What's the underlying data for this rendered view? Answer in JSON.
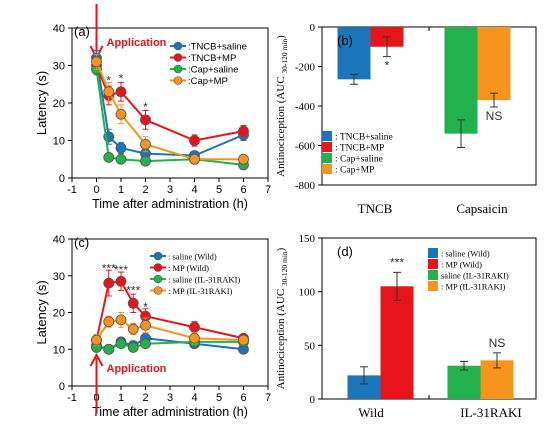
{
  "chart_data": [
    {
      "panel_label": "(a)",
      "type": "line",
      "xlabel": "Time after administration (h)",
      "ylabel": "Latency (s)",
      "xlim": [
        -1,
        7
      ],
      "ylim": [
        0,
        40
      ],
      "x_ticks": [
        -1,
        0,
        1,
        2,
        3,
        4,
        5,
        6,
        7
      ],
      "y_ticks": [
        0,
        10,
        20,
        30,
        40
      ],
      "x": [
        0,
        0.5,
        1,
        2,
        4,
        6
      ],
      "annotation": "Application",
      "annotation_color": "#e8141b",
      "legend_position": "top-right",
      "series": [
        {
          "name": ":TNCB+saline",
          "color": "#1b75bb",
          "values": [
            32,
            11,
            8,
            6.5,
            6,
            11.5
          ],
          "errors": [
            2,
            2,
            1.5,
            1,
            1,
            1.5
          ]
        },
        {
          "name": ":TNCB+MP",
          "color": "#e8141b",
          "values": [
            30,
            22,
            23,
            15.5,
            10,
            12.5
          ],
          "errors": [
            2,
            2.5,
            2.5,
            2.5,
            1.5,
            1.5
          ]
        },
        {
          "name": ":Cap+saline",
          "color": "#22b14c",
          "values": [
            29,
            5.5,
            5,
            4.5,
            5,
            3.5
          ],
          "errors": [
            1.5,
            1,
            1,
            1,
            1,
            1
          ]
        },
        {
          "name": ":Cap+MP",
          "color": "#f7941d",
          "values": [
            31,
            23,
            17,
            9,
            5,
            5
          ],
          "errors": [
            2,
            2.5,
            2.5,
            2,
            1,
            1
          ]
        }
      ],
      "significance": [
        {
          "x": 0.5,
          "y": 26,
          "text": "*"
        },
        {
          "x": 1,
          "y": 26.5,
          "text": "*"
        },
        {
          "x": 2,
          "y": 19,
          "text": "*"
        }
      ]
    },
    {
      "panel_label": "(b)",
      "type": "bar",
      "ylabel_main": "Antinociception (AUC",
      "ylabel_sub": "30-120 min",
      "ylabel_end": ")",
      "ylim": [
        -800,
        0
      ],
      "y_ticks": [
        0,
        -200,
        -400,
        -600,
        -800
      ],
      "categories": [
        "TNCB",
        "Capsaicin"
      ],
      "legend_position": "bottom-left",
      "series": [
        {
          "name": ": TNCB+saline",
          "color": "#1b75bb",
          "category": 0,
          "value": -265,
          "error": 25
        },
        {
          "name": ": TNCB+MP",
          "color": "#e8141b",
          "category": 0,
          "value": -100,
          "error": 50
        },
        {
          "name": ": Cap+saline",
          "color": "#22b14c",
          "category": 1,
          "value": -540,
          "error": 70
        },
        {
          "name": ": Cap+MP",
          "color": "#f7941d",
          "category": 1,
          "value": -370,
          "error": 35
        }
      ],
      "significance": [
        {
          "series": 1,
          "text": "*"
        },
        {
          "series": 3,
          "text": "NS"
        }
      ]
    },
    {
      "panel_label": "(c)",
      "type": "line",
      "xlabel": "Time after administration (h)",
      "ylabel": "Latency (s)",
      "xlim": [
        -1,
        7
      ],
      "ylim": [
        0,
        40
      ],
      "x_ticks": [
        -1,
        0,
        1,
        2,
        3,
        4,
        5,
        6,
        7
      ],
      "y_ticks": [
        0,
        10,
        20,
        30,
        40
      ],
      "x": [
        0,
        0.5,
        1,
        1.5,
        2,
        4,
        6
      ],
      "annotation": "Application",
      "annotation_color": "#e8141b",
      "legend_position": "top-right",
      "series": [
        {
          "name": ": saline (Wild)",
          "color": "#1b75bb",
          "values": [
            11,
            10,
            12,
            11,
            13,
            11.5,
            10
          ],
          "errors": [
            1,
            1,
            1,
            1,
            1,
            1,
            0.8
          ]
        },
        {
          "name": ": MP (Wild)",
          "color": "#e8141b",
          "values": [
            12.5,
            28,
            28.5,
            22.5,
            19,
            16,
            13
          ],
          "errors": [
            1.5,
            3.5,
            2.5,
            2.5,
            2,
            1.5,
            1
          ]
        },
        {
          "name": ": saline (IL-31RAKI)",
          "color": "#22b14c",
          "values": [
            10.5,
            10,
            11.5,
            10.5,
            11.5,
            12,
            12
          ],
          "errors": [
            1,
            1,
            1,
            1,
            1,
            1,
            1
          ]
        },
        {
          "name": ": MP (IL-31RAKI)",
          "color": "#f7941d",
          "values": [
            12.5,
            17.5,
            18,
            15.5,
            16.5,
            13,
            12.5
          ],
          "errors": [
            1.5,
            1.5,
            2,
            1.5,
            2,
            1.5,
            1
          ]
        }
      ],
      "significance": [
        {
          "x": 0.5,
          "y": 32,
          "text": "***"
        },
        {
          "x": 1,
          "y": 31.5,
          "text": "***"
        },
        {
          "x": 1.5,
          "y": 26,
          "text": "***"
        },
        {
          "x": 2,
          "y": 21.5,
          "text": "*"
        }
      ]
    },
    {
      "panel_label": "(d)",
      "type": "bar",
      "ylabel_main": "Antinociception (AUC",
      "ylabel_sub": "30-120 min",
      "ylabel_end": ")",
      "ylim": [
        0,
        150
      ],
      "y_ticks": [
        0,
        50,
        100,
        150
      ],
      "categories": [
        "Wild",
        "IL-31RAKI"
      ],
      "legend_position": "top-right",
      "series": [
        {
          "name": ": saline (Wild)",
          "color": "#1b75bb",
          "category": 0,
          "value": 22,
          "error": 8
        },
        {
          "name": ": MP (Wild)",
          "color": "#e8141b",
          "category": 0,
          "value": 105,
          "error": 13
        },
        {
          "name": "saline (IL-31RAKI)",
          "color": "#22b14c",
          "category": 1,
          "value": 31,
          "error": 4
        },
        {
          "name": ": MP (IL-31RAKI)",
          "color": "#f7941d",
          "category": 1,
          "value": 36,
          "error": 7
        }
      ],
      "significance": [
        {
          "series": 1,
          "text": "***"
        },
        {
          "series": 3,
          "text": "NS"
        }
      ]
    }
  ]
}
